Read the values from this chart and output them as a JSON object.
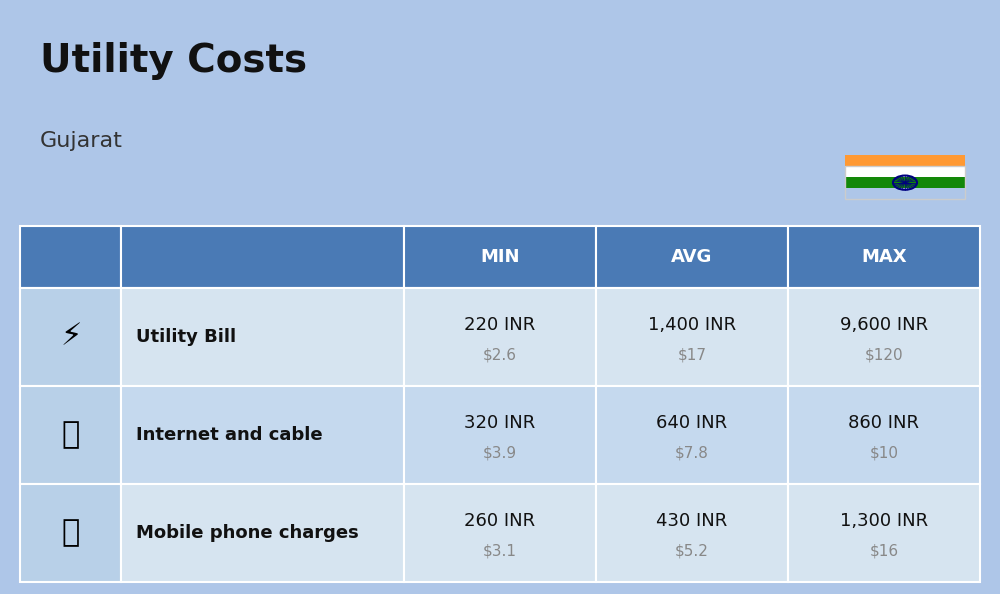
{
  "title": "Utility Costs",
  "subtitle": "Gujarat",
  "background_color": "#aec6e8",
  "table_header_color": "#4a7ab5",
  "table_header_text_color": "#ffffff",
  "row_colors": [
    "#d6e4f0",
    "#c5d9ee"
  ],
  "icon_col_color": "#b8d0e8",
  "col_headers": [
    "",
    "",
    "MIN",
    "AVG",
    "MAX"
  ],
  "rows": [
    {
      "label": "Utility Bill",
      "min_inr": "220 INR",
      "min_usd": "$2.6",
      "avg_inr": "1,400 INR",
      "avg_usd": "$17",
      "max_inr": "9,600 INR",
      "max_usd": "$120"
    },
    {
      "label": "Internet and cable",
      "min_inr": "320 INR",
      "min_usd": "$3.9",
      "avg_inr": "640 INR",
      "avg_usd": "$7.8",
      "max_inr": "860 INR",
      "max_usd": "$10"
    },
    {
      "label": "Mobile phone charges",
      "min_inr": "260 INR",
      "min_usd": "$3.1",
      "avg_inr": "430 INR",
      "avg_usd": "$5.2",
      "max_inr": "1,300 INR",
      "max_usd": "$16"
    }
  ],
  "flag_colors": {
    "top": "#FF9933",
    "middle": "#FFFFFF",
    "bottom": "#138808",
    "chakra": "#000080"
  },
  "title_fontsize": 28,
  "subtitle_fontsize": 16,
  "header_fontsize": 13,
  "label_fontsize": 13,
  "value_fontsize": 13,
  "usd_fontsize": 11,
  "usd_color": "#888888",
  "label_color": "#111111",
  "value_color": "#111111"
}
